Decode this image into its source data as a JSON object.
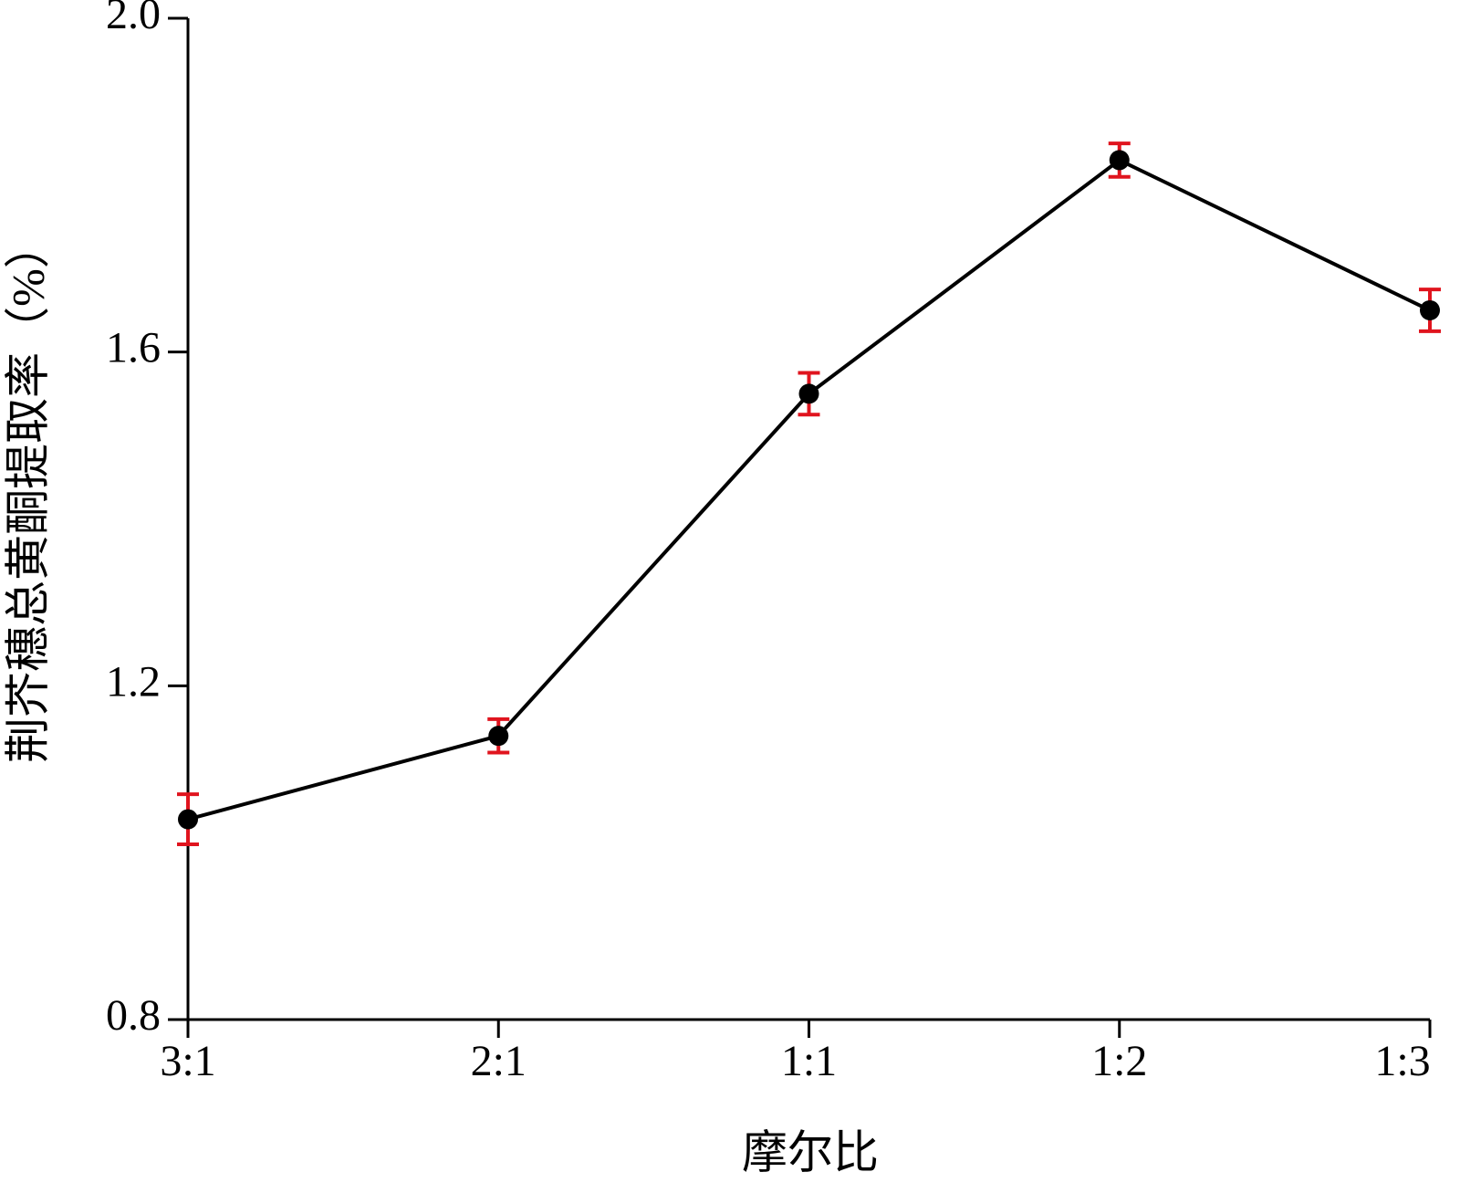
{
  "chart_data": {
    "type": "line",
    "x_label": "摩尔比",
    "y_label": "荆芥穗总黄酮提取率（%）",
    "categories": [
      "3:1",
      "2:1",
      "1:1",
      "1:2",
      "1:3"
    ],
    "series": [
      {
        "color": "#000000",
        "error_color": "#e0141e",
        "values": [
          1.04,
          1.14,
          1.55,
          1.83,
          1.65
        ],
        "errors": [
          0.03,
          0.02,
          0.025,
          0.02,
          0.025
        ]
      }
    ],
    "ylim": [
      0.8,
      2.0
    ],
    "yticks": [
      {
        "value": 0.8,
        "label": "0.8"
      },
      {
        "value": 1.2,
        "label": "1.2"
      },
      {
        "value": 1.6,
        "label": "1.6"
      },
      {
        "value": 2.0,
        "label": "2.0"
      }
    ],
    "grid": false
  }
}
